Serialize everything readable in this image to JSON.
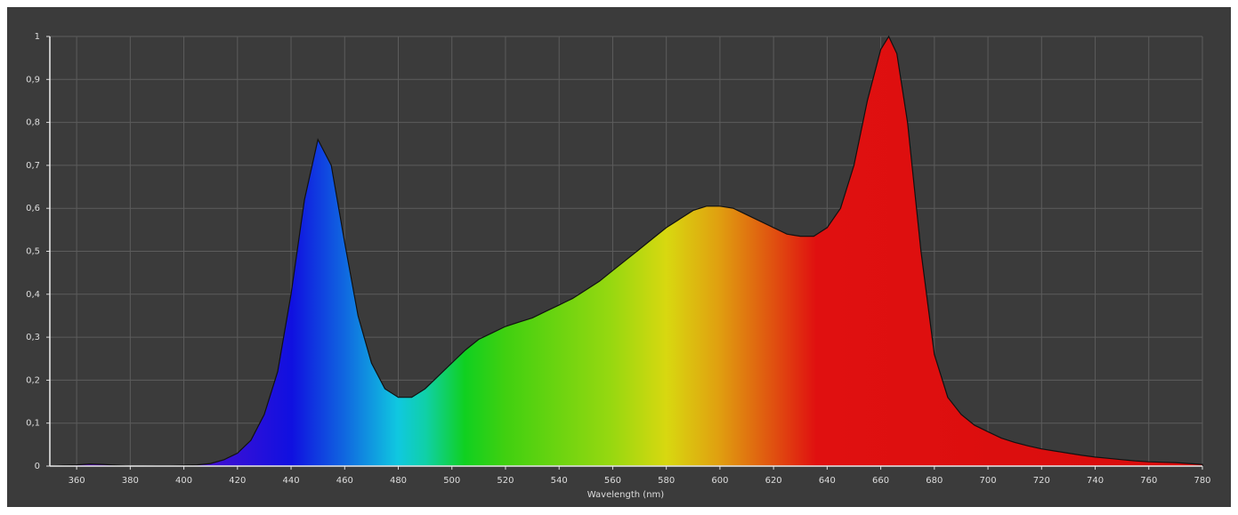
{
  "chart_data": {
    "type": "area",
    "x_label": "Wavelength (nm)",
    "x": [
      350,
      355,
      360,
      365,
      370,
      375,
      380,
      385,
      390,
      395,
      400,
      405,
      410,
      415,
      420,
      425,
      430,
      435,
      440,
      445,
      450,
      455,
      460,
      465,
      470,
      475,
      480,
      485,
      490,
      495,
      500,
      505,
      510,
      515,
      520,
      525,
      530,
      535,
      540,
      545,
      550,
      555,
      560,
      565,
      570,
      575,
      580,
      585,
      590,
      595,
      600,
      605,
      610,
      615,
      620,
      625,
      630,
      635,
      640,
      645,
      650,
      655,
      660,
      663,
      666,
      670,
      675,
      680,
      685,
      690,
      695,
      700,
      705,
      710,
      715,
      720,
      725,
      730,
      735,
      740,
      745,
      750,
      755,
      760,
      765,
      770,
      775,
      780
    ],
    "values": [
      0,
      0.002,
      0.003,
      0.005,
      0.004,
      0.002,
      0,
      0,
      0.001,
      0.001,
      0.002,
      0.003,
      0.006,
      0.015,
      0.03,
      0.06,
      0.12,
      0.22,
      0.4,
      0.62,
      0.76,
      0.7,
      0.52,
      0.35,
      0.24,
      0.18,
      0.16,
      0.16,
      0.18,
      0.21,
      0.24,
      0.27,
      0.295,
      0.31,
      0.325,
      0.335,
      0.345,
      0.36,
      0.375,
      0.39,
      0.41,
      0.43,
      0.455,
      0.48,
      0.505,
      0.53,
      0.555,
      0.575,
      0.595,
      0.605,
      0.605,
      0.6,
      0.585,
      0.57,
      0.555,
      0.54,
      0.535,
      0.535,
      0.555,
      0.6,
      0.7,
      0.85,
      0.97,
      1.0,
      0.96,
      0.8,
      0.5,
      0.26,
      0.16,
      0.12,
      0.095,
      0.08,
      0.065,
      0.055,
      0.047,
      0.04,
      0.035,
      0.03,
      0.025,
      0.021,
      0.018,
      0.015,
      0.012,
      0.01,
      0.009,
      0.008,
      0.006,
      0.004
    ],
    "xlim": [
      350,
      780
    ],
    "xticks": [
      360,
      380,
      400,
      420,
      440,
      460,
      480,
      500,
      520,
      540,
      560,
      580,
      600,
      620,
      640,
      660,
      680,
      700,
      720,
      740,
      760,
      780
    ],
    "ylim": [
      0,
      1
    ],
    "yticks": [
      0,
      {
        "value": 0.1,
        "label": "0,1"
      },
      {
        "value": 0.2,
        "label": "0,2"
      },
      {
        "value": 0.3,
        "label": "0,3"
      },
      {
        "value": 0.4,
        "label": "0,4"
      },
      {
        "value": 0.5,
        "label": "0,5"
      },
      {
        "value": 0.6,
        "label": "0,6"
      },
      {
        "value": 0.7,
        "label": "0,7"
      },
      {
        "value": 0.8,
        "label": "0,8"
      },
      {
        "value": 0.9,
        "label": "0,9"
      },
      1
    ],
    "grid": true
  }
}
